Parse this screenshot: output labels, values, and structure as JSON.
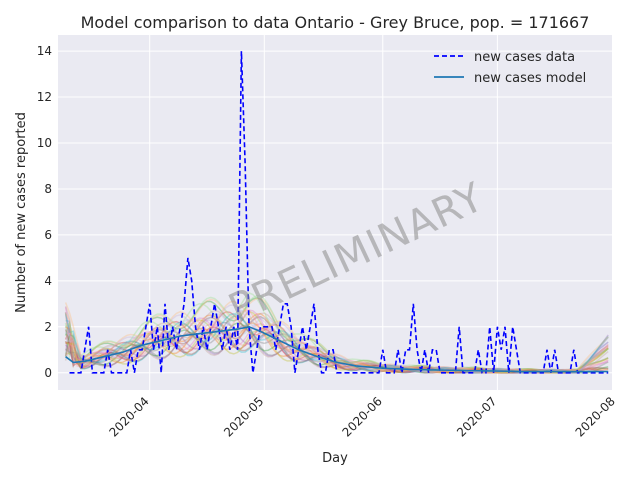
{
  "chart_data": {
    "type": "line",
    "title": "Model comparison to data Ontario - Grey Bruce, pop. = 171667",
    "xlabel": "Day",
    "ylabel": "Number of new cases reported",
    "x_range": [
      "2020-03-08",
      "2020-07-31"
    ],
    "ylim": [
      -0.75,
      14.7
    ],
    "y_ticks": [
      0,
      2,
      4,
      6,
      8,
      10,
      12,
      14
    ],
    "x_ticks": [
      {
        "date": "2020-04-01",
        "label": "2020-04"
      },
      {
        "date": "2020-05-01",
        "label": "2020-05"
      },
      {
        "date": "2020-06-01",
        "label": "2020-06"
      },
      {
        "date": "2020-07-01",
        "label": "2020-07"
      },
      {
        "date": "2020-08-01",
        "label": "2020-08"
      }
    ],
    "grid": true,
    "legend_position": "top-right",
    "watermark": "PRELIMINARY",
    "series": [
      {
        "name": "new cases data",
        "style": "dashed",
        "color": "#0000ff",
        "points": [
          [
            "2020-03-11",
            0
          ],
          [
            "2020-03-12",
            0
          ],
          [
            "2020-03-13",
            0
          ],
          [
            "2020-03-14",
            0
          ],
          [
            "2020-03-15",
            1
          ],
          [
            "2020-03-16",
            2
          ],
          [
            "2020-03-17",
            0
          ],
          [
            "2020-03-18",
            0
          ],
          [
            "2020-03-19",
            0
          ],
          [
            "2020-03-20",
            0
          ],
          [
            "2020-03-21",
            1
          ],
          [
            "2020-03-22",
            0
          ],
          [
            "2020-03-23",
            0
          ],
          [
            "2020-03-24",
            0
          ],
          [
            "2020-03-25",
            0
          ],
          [
            "2020-03-26",
            0
          ],
          [
            "2020-03-27",
            1
          ],
          [
            "2020-03-28",
            0
          ],
          [
            "2020-03-29",
            1
          ],
          [
            "2020-03-30",
            1
          ],
          [
            "2020-03-31",
            2
          ],
          [
            "2020-04-01",
            3
          ],
          [
            "2020-04-02",
            1
          ],
          [
            "2020-04-03",
            2
          ],
          [
            "2020-04-04",
            0
          ],
          [
            "2020-04-05",
            3
          ],
          [
            "2020-04-06",
            1
          ],
          [
            "2020-04-07",
            2
          ],
          [
            "2020-04-08",
            1
          ],
          [
            "2020-04-09",
            2
          ],
          [
            "2020-04-10",
            3
          ],
          [
            "2020-04-11",
            5
          ],
          [
            "2020-04-12",
            4
          ],
          [
            "2020-04-13",
            2
          ],
          [
            "2020-04-14",
            1
          ],
          [
            "2020-04-15",
            2
          ],
          [
            "2020-04-16",
            1
          ],
          [
            "2020-04-17",
            2
          ],
          [
            "2020-04-18",
            3
          ],
          [
            "2020-04-19",
            2
          ],
          [
            "2020-04-20",
            1
          ],
          [
            "2020-04-21",
            2
          ],
          [
            "2020-04-22",
            1
          ],
          [
            "2020-04-23",
            2
          ],
          [
            "2020-04-24",
            1
          ],
          [
            "2020-04-25",
            14
          ],
          [
            "2020-04-26",
            9
          ],
          [
            "2020-04-27",
            2
          ],
          [
            "2020-04-28",
            0
          ],
          [
            "2020-04-29",
            1
          ],
          [
            "2020-04-30",
            2
          ],
          [
            "2020-05-01",
            2
          ],
          [
            "2020-05-02",
            2
          ],
          [
            "2020-05-03",
            2
          ],
          [
            "2020-05-04",
            1
          ],
          [
            "2020-05-05",
            2
          ],
          [
            "2020-05-06",
            3
          ],
          [
            "2020-05-07",
            3
          ],
          [
            "2020-05-08",
            2
          ],
          [
            "2020-05-09",
            0
          ],
          [
            "2020-05-10",
            1
          ],
          [
            "2020-05-11",
            2
          ],
          [
            "2020-05-12",
            1
          ],
          [
            "2020-05-13",
            2
          ],
          [
            "2020-05-14",
            3
          ],
          [
            "2020-05-15",
            1
          ],
          [
            "2020-05-16",
            0
          ],
          [
            "2020-05-17",
            0
          ],
          [
            "2020-05-18",
            1
          ],
          [
            "2020-05-19",
            1
          ],
          [
            "2020-05-20",
            0
          ],
          [
            "2020-05-21",
            0
          ],
          [
            "2020-05-22",
            0
          ],
          [
            "2020-05-23",
            0
          ],
          [
            "2020-05-24",
            0
          ],
          [
            "2020-05-25",
            0
          ],
          [
            "2020-05-26",
            0
          ],
          [
            "2020-05-27",
            0
          ],
          [
            "2020-05-28",
            0
          ],
          [
            "2020-05-29",
            0
          ],
          [
            "2020-05-30",
            0
          ],
          [
            "2020-05-31",
            0
          ],
          [
            "2020-06-01",
            1
          ],
          [
            "2020-06-02",
            0
          ],
          [
            "2020-06-03",
            0
          ],
          [
            "2020-06-04",
            0
          ],
          [
            "2020-06-05",
            1
          ],
          [
            "2020-06-06",
            0
          ],
          [
            "2020-06-07",
            1
          ],
          [
            "2020-06-08",
            1
          ],
          [
            "2020-06-09",
            3
          ],
          [
            "2020-06-10",
            1
          ],
          [
            "2020-06-11",
            0
          ],
          [
            "2020-06-12",
            1
          ],
          [
            "2020-06-13",
            0
          ],
          [
            "2020-06-14",
            1
          ],
          [
            "2020-06-15",
            1
          ],
          [
            "2020-06-16",
            0
          ],
          [
            "2020-06-17",
            0
          ],
          [
            "2020-06-18",
            0
          ],
          [
            "2020-06-19",
            0
          ],
          [
            "2020-06-20",
            0
          ],
          [
            "2020-06-21",
            2
          ],
          [
            "2020-06-22",
            0
          ],
          [
            "2020-06-23",
            0
          ],
          [
            "2020-06-24",
            0
          ],
          [
            "2020-06-25",
            0
          ],
          [
            "2020-06-26",
            1
          ],
          [
            "2020-06-27",
            0
          ],
          [
            "2020-06-28",
            0
          ],
          [
            "2020-06-29",
            2
          ],
          [
            "2020-06-30",
            0
          ],
          [
            "2020-07-01",
            2
          ],
          [
            "2020-07-02",
            1
          ],
          [
            "2020-07-03",
            2
          ],
          [
            "2020-07-04",
            0
          ],
          [
            "2020-07-05",
            2
          ],
          [
            "2020-07-06",
            1
          ],
          [
            "2020-07-07",
            0
          ],
          [
            "2020-07-08",
            0
          ],
          [
            "2020-07-09",
            0
          ],
          [
            "2020-07-10",
            0
          ],
          [
            "2020-07-11",
            0
          ],
          [
            "2020-07-12",
            0
          ],
          [
            "2020-07-13",
            0
          ],
          [
            "2020-07-14",
            1
          ],
          [
            "2020-07-15",
            0
          ],
          [
            "2020-07-16",
            1
          ],
          [
            "2020-07-17",
            0
          ],
          [
            "2020-07-18",
            0
          ],
          [
            "2020-07-19",
            0
          ],
          [
            "2020-07-20",
            0
          ],
          [
            "2020-07-21",
            1
          ],
          [
            "2020-07-22",
            0
          ],
          [
            "2020-07-23",
            0
          ],
          [
            "2020-07-24",
            0
          ],
          [
            "2020-07-25",
            0
          ],
          [
            "2020-07-26",
            0
          ],
          [
            "2020-07-27",
            0
          ],
          [
            "2020-07-28",
            0
          ],
          [
            "2020-07-29",
            0
          ],
          [
            "2020-07-30",
            0
          ]
        ]
      },
      {
        "name": "new cases model",
        "style": "solid",
        "color": "#1f77b4",
        "points": [
          [
            "2020-03-10",
            0.7
          ],
          [
            "2020-03-12",
            0.45
          ],
          [
            "2020-03-15",
            0.5
          ],
          [
            "2020-03-20",
            0.7
          ],
          [
            "2020-03-25",
            0.9
          ],
          [
            "2020-03-30",
            1.2
          ],
          [
            "2020-04-04",
            1.4
          ],
          [
            "2020-04-09",
            1.6
          ],
          [
            "2020-04-14",
            1.7
          ],
          [
            "2020-04-19",
            1.8
          ],
          [
            "2020-04-24",
            1.9
          ],
          [
            "2020-04-27",
            2.0
          ],
          [
            "2020-04-30",
            1.8
          ],
          [
            "2020-05-05",
            1.4
          ],
          [
            "2020-05-10",
            1.0
          ],
          [
            "2020-05-15",
            0.7
          ],
          [
            "2020-05-20",
            0.45
          ],
          [
            "2020-05-25",
            0.3
          ],
          [
            "2020-06-01",
            0.2
          ],
          [
            "2020-06-08",
            0.15
          ],
          [
            "2020-06-15",
            0.12
          ],
          [
            "2020-06-22",
            0.1
          ],
          [
            "2020-06-29",
            0.08
          ],
          [
            "2020-07-06",
            0.06
          ],
          [
            "2020-07-13",
            0.05
          ],
          [
            "2020-07-20",
            0.05
          ],
          [
            "2020-07-27",
            0.05
          ],
          [
            "2020-07-30",
            0.05
          ]
        ]
      }
    ],
    "ensemble": {
      "colors": [
        "#ff7f0e",
        "#2ca02c",
        "#d62728",
        "#9467bd",
        "#8c564b",
        "#e377c2",
        "#7f7f7f",
        "#bcbd22",
        "#17becf",
        "#aec7e8",
        "#ffbb78",
        "#98df8a",
        "#ff9896",
        "#c5b0d5",
        "#c49c94"
      ],
      "count": 30
    }
  }
}
